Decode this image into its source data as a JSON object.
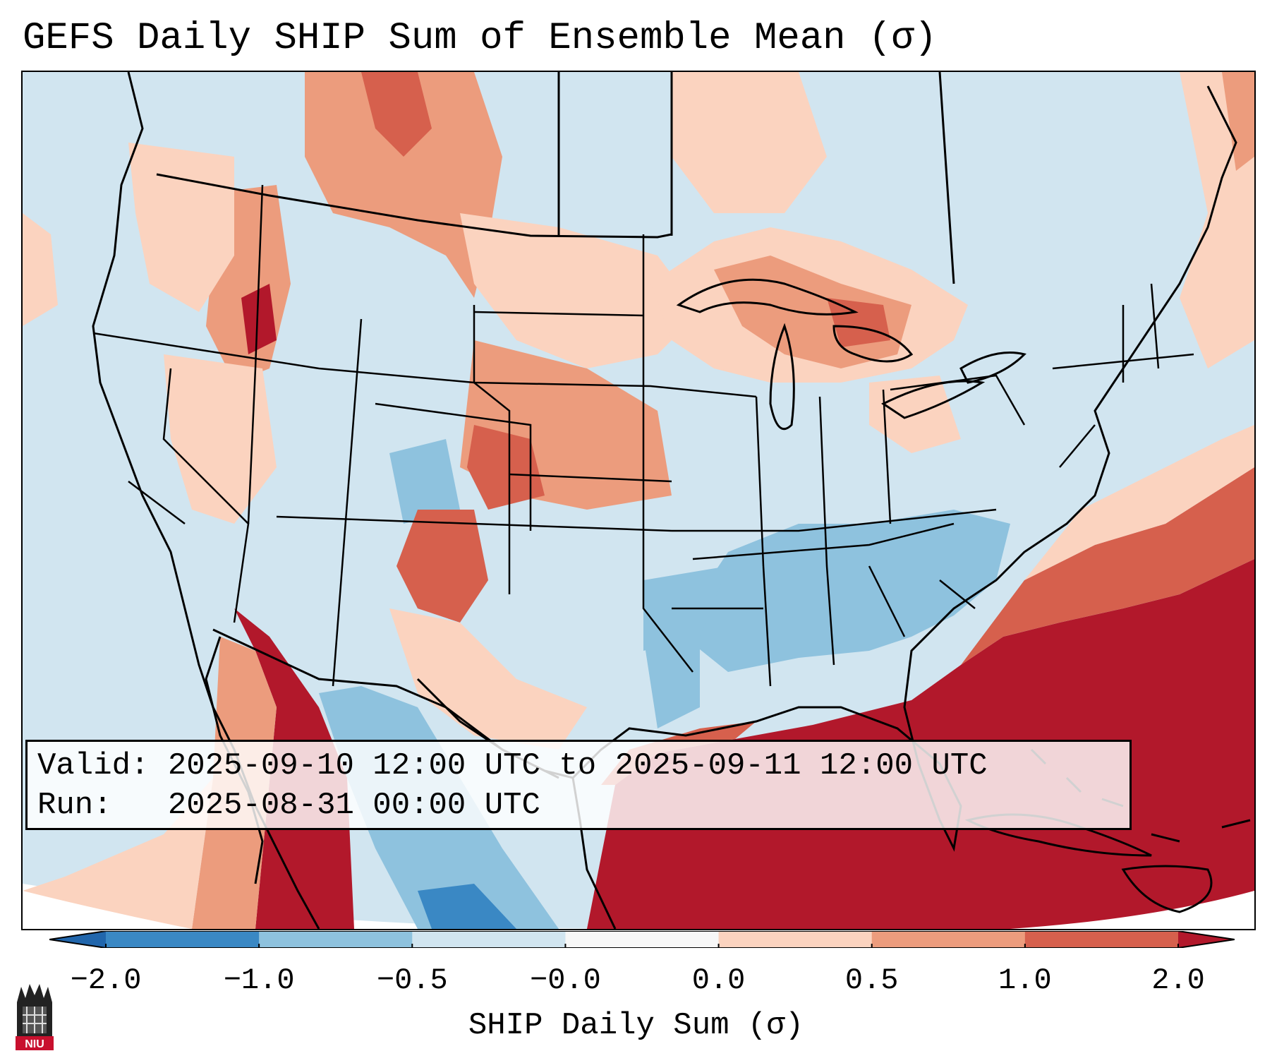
{
  "title": "GEFS Daily SHIP Sum of Ensemble Mean (σ)",
  "info": {
    "valid_label": "Valid:",
    "valid_value": "2025-09-10 12:00 UTC to 2025-09-11 12:00 UTC",
    "run_label": "Run:",
    "run_value": "2025-08-31 00:00 UTC"
  },
  "colorbar": {
    "label": "SHIP Daily Sum (σ)",
    "ticks": [
      "−2.0",
      "−1.0",
      "−0.5",
      "−0.0",
      "0.0",
      "0.5",
      "1.0",
      "2.0"
    ],
    "colors": [
      "#3a88c4",
      "#8ec2de",
      "#d1e5f0",
      "#f7f7f7",
      "#fbd3bf",
      "#ec9c7d",
      "#d6604d",
      "#b2182b"
    ],
    "under_color": "#2166ac",
    "over_color": "#a50f2a"
  },
  "map": {
    "ocean_color": "#d1e5f0",
    "border_color": "#000000"
  },
  "logo": {
    "text": "NIU",
    "color": "#c8102e"
  }
}
